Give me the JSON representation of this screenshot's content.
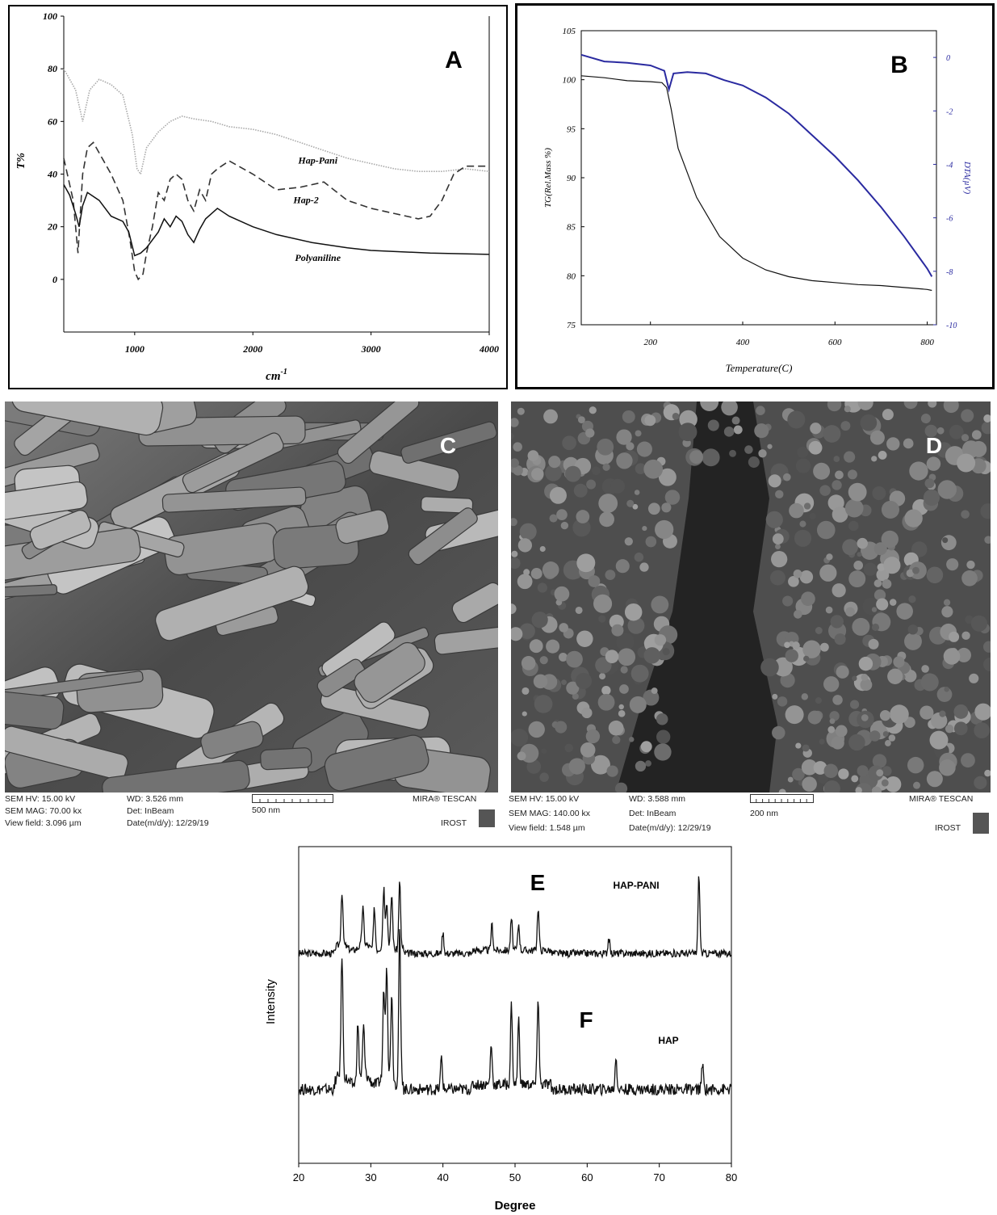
{
  "panels": {
    "A": "A",
    "B": "B",
    "C": "C",
    "D": "D",
    "E": "E",
    "F": "F"
  },
  "chart_data": [
    {
      "id": "A",
      "type": "line",
      "title": "",
      "xlabel": "cm-1",
      "ylabel": "T%",
      "xlim": [
        400,
        4000
      ],
      "ylim": [
        -20,
        100
      ],
      "xticks": [
        "1000",
        "2000",
        "3000",
        "4000"
      ],
      "yticks": [
        "0",
        "20",
        "40",
        "60",
        "80",
        "100"
      ],
      "series": [
        {
          "name": "Hap-Pani",
          "style": "dotted",
          "x": [
            400,
            500,
            560,
            620,
            700,
            800,
            900,
            980,
            1020,
            1050,
            1100,
            1200,
            1300,
            1400,
            1500,
            1650,
            1800,
            2000,
            2200,
            2400,
            2600,
            2800,
            3000,
            3200,
            3400,
            3600,
            3800,
            4000
          ],
          "y": [
            80,
            72,
            60,
            72,
            76,
            74,
            70,
            55,
            42,
            40,
            50,
            56,
            60,
            62,
            61,
            60,
            58,
            57,
            55,
            52,
            49,
            46,
            44,
            42,
            41,
            41,
            42,
            41
          ]
        },
        {
          "name": "Hap-2",
          "style": "dashed",
          "x": [
            400,
            480,
            520,
            560,
            600,
            650,
            700,
            800,
            900,
            960,
            1000,
            1030,
            1070,
            1100,
            1150,
            1200,
            1250,
            1300,
            1350,
            1400,
            1450,
            1500,
            1550,
            1600,
            1650,
            1700,
            1800,
            2000,
            2200,
            2400,
            2600,
            2800,
            3000,
            3200,
            3400,
            3500,
            3600,
            3700,
            3800,
            4000
          ],
          "y": [
            46,
            30,
            10,
            40,
            50,
            52,
            48,
            40,
            30,
            15,
            3,
            0,
            2,
            10,
            20,
            33,
            30,
            38,
            40,
            38,
            30,
            26,
            34,
            30,
            40,
            42,
            45,
            40,
            34,
            35,
            37,
            30,
            27,
            25,
            23,
            24,
            30,
            40,
            43,
            43
          ]
        },
        {
          "name": "Polyaniline",
          "style": "solid",
          "x": [
            400,
            450,
            500,
            530,
            560,
            600,
            700,
            800,
            900,
            950,
            1000,
            1050,
            1100,
            1200,
            1250,
            1300,
            1350,
            1400,
            1450,
            1500,
            1550,
            1600,
            1650,
            1700,
            1800,
            2000,
            2200,
            2500,
            2800,
            3000,
            3500,
            4000
          ],
          "y": [
            36,
            32,
            25,
            20,
            28,
            33,
            30,
            24,
            22,
            18,
            9,
            10,
            12,
            18,
            23,
            20,
            24,
            22,
            17,
            14,
            19,
            23,
            25,
            27,
            24,
            20,
            17,
            14,
            12,
            11,
            10,
            9.5
          ]
        }
      ],
      "annotations": [
        "Hap-Pani",
        "Hap-2",
        "Polyaniline"
      ]
    },
    {
      "id": "B",
      "type": "line",
      "title": "",
      "xlabel": "Temperature(C)",
      "ylabel": "TG(Rel.Mass %)",
      "y2label": "DTA(µV)",
      "xlim": [
        50,
        820
      ],
      "ylim": [
        75,
        105
      ],
      "y2lim": [
        -10,
        1
      ],
      "xticks": [
        "200",
        "400",
        "600",
        "800"
      ],
      "yticks": [
        "75",
        "80",
        "85",
        "90",
        "95",
        "100",
        "105"
      ],
      "y2ticks": [
        "0",
        "-2",
        "-4",
        "-6",
        "-8",
        "-10"
      ],
      "tg": {
        "x": [
          50,
          100,
          150,
          200,
          225,
          235,
          245,
          260,
          300,
          350,
          400,
          450,
          500,
          550,
          600,
          650,
          700,
          750,
          800,
          810
        ],
        "y": [
          100.4,
          100.2,
          99.9,
          99.8,
          99.7,
          99.2,
          97,
          93,
          88,
          84,
          81.8,
          80.6,
          79.9,
          79.5,
          79.3,
          79.1,
          79,
          78.8,
          78.6,
          78.5
        ]
      },
      "dta": {
        "x": [
          50,
          100,
          150,
          200,
          230,
          240,
          250,
          280,
          320,
          360,
          400,
          450,
          500,
          550,
          600,
          650,
          700,
          750,
          800,
          810
        ],
        "y": [
          0.1,
          -0.15,
          -0.2,
          -0.3,
          -0.5,
          -1.2,
          -0.6,
          -0.55,
          -0.6,
          -0.85,
          -1.05,
          -1.5,
          -2.1,
          -2.9,
          -3.7,
          -4.6,
          -5.6,
          -6.7,
          -7.9,
          -8.2
        ]
      }
    },
    {
      "id": "EF",
      "type": "line",
      "title": "",
      "xlabel": "Degree",
      "ylabel": "Intensity",
      "xlim": [
        20,
        80
      ],
      "xticks": [
        "20",
        "30",
        "40",
        "50",
        "60",
        "70",
        "80"
      ],
      "series": [
        {
          "name": "HAP-PANI",
          "baseline": 0.3,
          "peaks": [
            [
              26,
              0.5
            ],
            [
              28.9,
              0.35
            ],
            [
              30.5,
              0.4
            ],
            [
              31.8,
              0.55
            ],
            [
              32.2,
              0.4
            ],
            [
              32.9,
              0.5
            ],
            [
              34,
              0.65
            ],
            [
              40,
              0.2
            ],
            [
              46.8,
              0.25
            ],
            [
              49.5,
              0.3
            ],
            [
              50.5,
              0.25
            ],
            [
              53.2,
              0.4
            ],
            [
              63,
              0.15
            ],
            [
              75.5,
              0.75
            ]
          ]
        },
        {
          "name": "HAP",
          "baseline": 0.25,
          "peaks": [
            [
              26,
              0.75
            ],
            [
              28.2,
              0.35
            ],
            [
              29,
              0.3
            ],
            [
              31.8,
              0.55
            ],
            [
              32.2,
              0.7
            ],
            [
              32.9,
              0.55
            ],
            [
              34,
              0.95
            ],
            [
              39.8,
              0.2
            ],
            [
              46.7,
              0.25
            ],
            [
              49.5,
              0.5
            ],
            [
              50.5,
              0.4
            ],
            [
              53.2,
              0.55
            ],
            [
              64,
              0.2
            ],
            [
              76,
              0.15
            ]
          ]
        }
      ]
    }
  ],
  "sem": {
    "C": {
      "hv": "SEM HV: 15.00 kV",
      "wd": "WD: 3.526 mm",
      "mag": "SEM MAG: 70.00 kx",
      "det": "Det: InBeam",
      "field": "View field: 3.096 µm",
      "date": "Date(m/d/y): 12/29/19",
      "scale": "500 nm",
      "brand": "MIRA® TESCAN",
      "inst": "IROST"
    },
    "D": {
      "hv": "SEM HV: 15.00 kV",
      "wd": "WD: 3.588 mm",
      "mag": "SEM MAG: 140.00 kx",
      "det": "Det: InBeam",
      "field": "View field: 1.548 µm",
      "date": "Date(m/d/y): 12/29/19",
      "scale": "200 nm",
      "brand": "MIRA® TESCAN",
      "inst": "IROST"
    }
  },
  "colors": {
    "dta": "#2a2aa0",
    "frame": "#000000"
  }
}
